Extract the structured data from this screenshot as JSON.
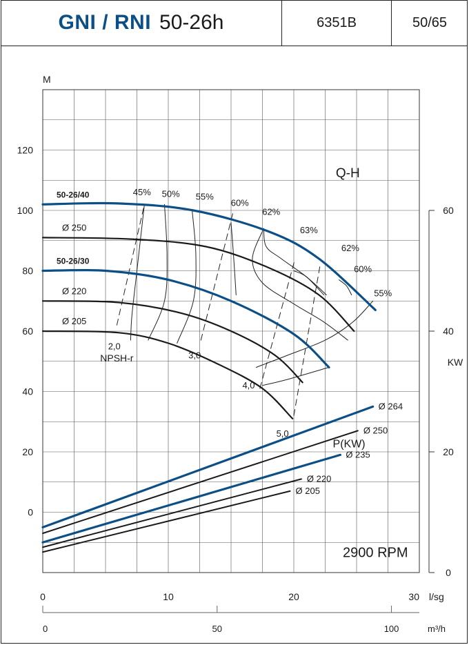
{
  "header": {
    "brand": "GNI / RNI",
    "model": "50-26h",
    "code": "6351B",
    "size": "50/65"
  },
  "chart_data": {
    "type": "line",
    "title": "",
    "y_unit_left": "M",
    "y_unit_right": "KW",
    "x_unit_primary": "l/sg",
    "x_unit_secondary": "m³/h",
    "x_ticks_primary": [
      "0",
      "10",
      "20",
      "30"
    ],
    "x_ticks_secondary": [
      "0",
      "50",
      "100"
    ],
    "y_ticks_left": [
      "0",
      "20",
      "40",
      "60",
      "80",
      "100",
      "120"
    ],
    "y_ticks_right": [
      "0",
      "20",
      "40",
      "60"
    ],
    "xlim": [
      0,
      30
    ],
    "ylim": [
      -20,
      140
    ],
    "grid": true,
    "labels": {
      "qh": "Q-H",
      "power": "P(KW)",
      "speed": "2900 RPM",
      "npsh": "NPSH-r"
    },
    "qh_curves": [
      {
        "name": "50-26/40",
        "label": "50-26/40",
        "bold": true,
        "color": "#0b4f86",
        "x": [
          0,
          6,
          12,
          18,
          22,
          26.5
        ],
        "y": [
          102,
          102.3,
          100,
          93,
          84,
          67
        ]
      },
      {
        "name": "Ø 250",
        "label": "Ø 250",
        "bold": false,
        "color": "#1a1a1a",
        "x": [
          0,
          7,
          13,
          18,
          22,
          24.8
        ],
        "y": [
          91,
          90.5,
          88,
          81,
          72,
          60
        ]
      },
      {
        "name": "50-26/30",
        "label": "50-26/30",
        "bold": true,
        "color": "#0b4f86",
        "x": [
          0,
          5,
          10,
          15,
          20,
          22.8
        ],
        "y": [
          80,
          80,
          77,
          70,
          59,
          48
        ]
      },
      {
        "name": "Ø 220",
        "label": "Ø 220",
        "bold": false,
        "color": "#1a1a1a",
        "x": [
          0,
          6,
          11,
          15,
          18.5,
          20.7
        ],
        "y": [
          70,
          69.5,
          66,
          60,
          52,
          43
        ]
      },
      {
        "name": "Ø 205",
        "label": "Ø 205",
        "bold": false,
        "color": "#1a1a1a",
        "x": [
          0,
          6,
          10,
          14,
          17.5,
          19.9
        ],
        "y": [
          60,
          59.5,
          56,
          49,
          41,
          31
        ]
      }
    ],
    "efficiency_labels": [
      {
        "label": "45%",
        "x": 7.9,
        "y": 105
      },
      {
        "label": "50%",
        "x": 10.2,
        "y": 104.5
      },
      {
        "label": "55%",
        "x": 12.9,
        "y": 103.5
      },
      {
        "label": "60%",
        "x": 15.7,
        "y": 101.5
      },
      {
        "label": "62%",
        "x": 18.2,
        "y": 98.5
      },
      {
        "label": "63%",
        "x": 21.2,
        "y": 92.5
      },
      {
        "label": "62%",
        "x": 24.5,
        "y": 86.5
      },
      {
        "label": "60%",
        "x": 25.5,
        "y": 79.5
      },
      {
        "label": "55%",
        "x": 27.1,
        "y": 71.5
      }
    ],
    "efficiency_curves": [
      {
        "x": [
          8.1,
          7.5,
          7.1,
          7.0
        ],
        "y": [
          102,
          80,
          65,
          57
        ]
      },
      {
        "x": [
          9.7,
          9.9,
          9.7,
          8.4
        ],
        "y": [
          102,
          85,
          70,
          57
        ]
      },
      {
        "x": [
          11.9,
          12.2,
          12.0,
          10.7
        ],
        "y": [
          100,
          85,
          70,
          56
        ]
      },
      {
        "x": [
          15.0,
          15.2,
          15.4
        ],
        "y": [
          96,
          85,
          72
        ]
      },
      {
        "x": [
          17.6,
          17.8,
          19.0,
          21.0,
          22.6
        ],
        "y": [
          94,
          88,
          84,
          78,
          72
        ]
      },
      {
        "x": [
          17.6,
          16.7,
          17.5,
          20.0,
          22.4,
          24.3
        ],
        "y": [
          94,
          84,
          76,
          69,
          63,
          57
        ]
      },
      {
        "x": [
          20.0,
          21.0,
          22.4
        ],
        "y": [
          80,
          78,
          72
        ]
      },
      {
        "x": [
          23.6,
          24.2,
          24.6
        ],
        "y": [
          77,
          75,
          72
        ]
      },
      {
        "x": [
          26.3,
          24.7,
          22.5,
          19.5,
          17.0
        ],
        "y": [
          70,
          63,
          57,
          52,
          48
        ]
      },
      {
        "x": [
          22.8,
          19.5,
          17.5
        ],
        "y": [
          48,
          44,
          42
        ]
      }
    ],
    "npsh_curves": [
      {
        "label": "2,0",
        "x": [
          5.9,
          8.1
        ],
        "y": [
          62,
          102
        ]
      },
      {
        "label": "3,0",
        "x": [
          12.6,
          15.2
        ],
        "y": [
          57,
          100
        ]
      },
      {
        "label": "4,0",
        "x": [
          17.3,
          20.1
        ],
        "y": [
          41,
          84
        ]
      },
      {
        "label": "5,0",
        "x": [
          20.0,
          22.1
        ],
        "y": [
          32,
          82
        ]
      }
    ],
    "npsh_value_labels": [
      {
        "label": "2,0",
        "x": 5.7,
        "y": 54
      },
      {
        "label": "3,0",
        "x": 12.1,
        "y": 51
      },
      {
        "label": "4,0",
        "x": 16.4,
        "y": 41
      },
      {
        "label": "5,0",
        "x": 19.1,
        "y": 25
      }
    ],
    "power_curves": [
      {
        "name": "Ø 264",
        "label": "Ø 264",
        "bold": true,
        "color": "#0b4f86",
        "x": [
          0,
          26.3
        ],
        "y": [
          7.5,
          27.5
        ]
      },
      {
        "name": "Ø 250",
        "label": "Ø 250",
        "bold": false,
        "color": "#1a1a1a",
        "x": [
          0,
          25.1
        ],
        "y": [
          6.5,
          23.5
        ]
      },
      {
        "name": "Ø 235",
        "label": "Ø 235",
        "bold": true,
        "color": "#0b4f86",
        "x": [
          0,
          23.7
        ],
        "y": [
          5,
          19.5
        ]
      },
      {
        "name": "Ø 220",
        "label": "Ø 220",
        "bold": false,
        "color": "#1a1a1a",
        "x": [
          0,
          20.6
        ],
        "y": [
          4.2,
          15.5
        ]
      },
      {
        "name": "Ø 205",
        "label": "Ø 205",
        "bold": false,
        "color": "#1a1a1a",
        "x": [
          0,
          19.7
        ],
        "y": [
          3.4,
          13.5
        ]
      }
    ]
  }
}
